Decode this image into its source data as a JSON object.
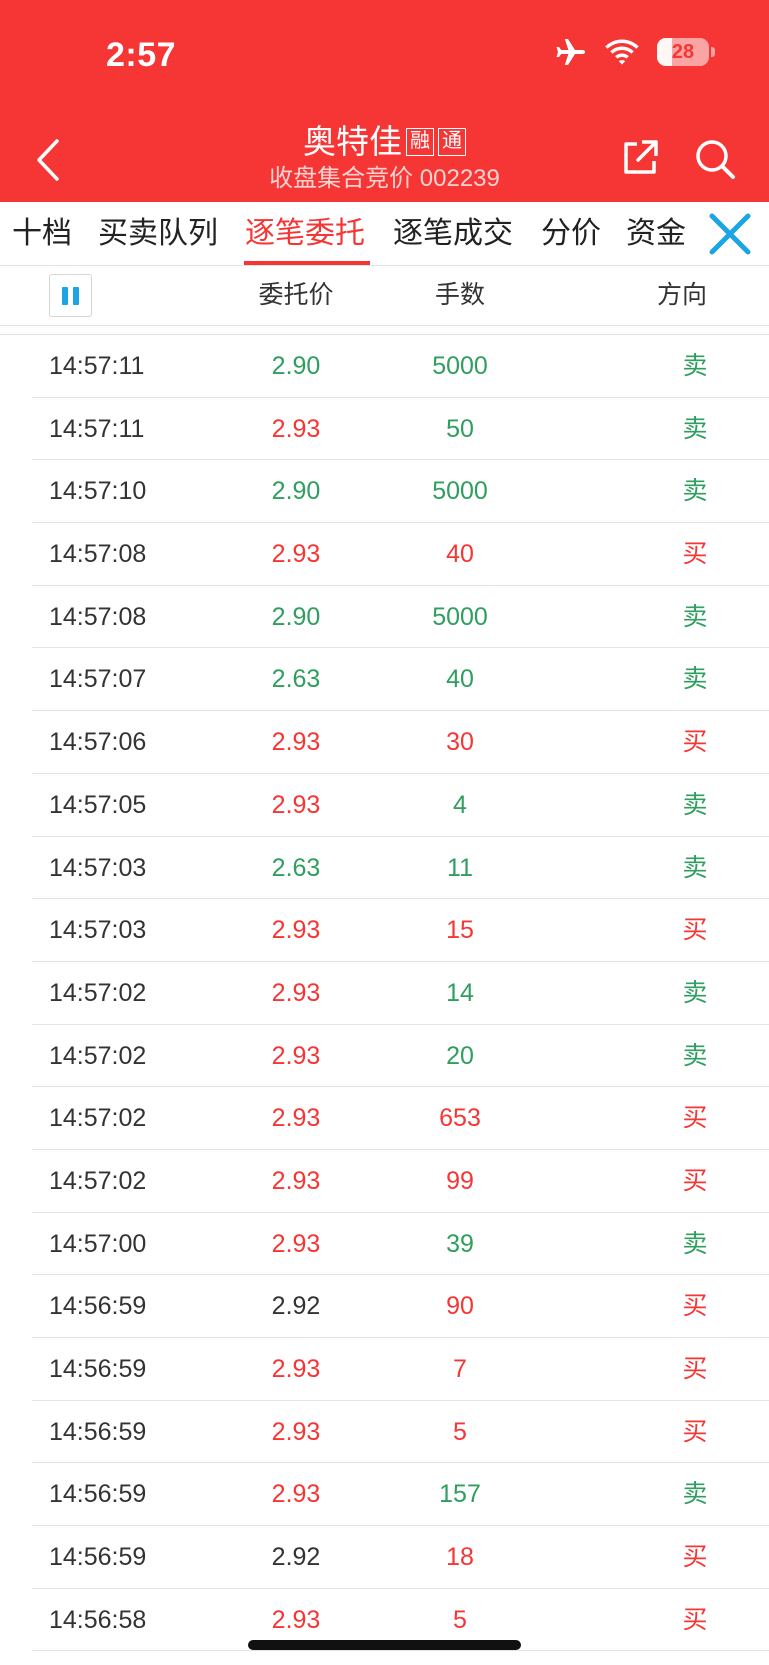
{
  "status_bar": {
    "time": "2:57",
    "battery": "28",
    "battery_level": 0.28
  },
  "header": {
    "title": "奥特佳",
    "tags": [
      "融",
      "通"
    ],
    "subtitle": "收盘集合竞价 002239"
  },
  "tabs": [
    {
      "label": "十档"
    },
    {
      "label": "买卖队列"
    },
    {
      "label": "逐笔委托",
      "active": true
    },
    {
      "label": "逐笔成交"
    },
    {
      "label": "分价"
    },
    {
      "label": "资金"
    }
  ],
  "columns": {
    "price": "委托价",
    "volume": "手数",
    "direction": "方向"
  },
  "colors": {
    "red": "#f63535",
    "green": "#2f9e5f",
    "neutral": "#333333",
    "accent_blue": "#1ba5e6"
  },
  "rows": [
    {
      "time": "14:57:11",
      "price": "2.90",
      "price_color": "green",
      "volume": "5000",
      "volume_color": "green",
      "direction": "卖",
      "direction_color": "green"
    },
    {
      "time": "14:57:11",
      "price": "2.93",
      "price_color": "red",
      "volume": "50",
      "volume_color": "green",
      "direction": "卖",
      "direction_color": "green"
    },
    {
      "time": "14:57:10",
      "price": "2.90",
      "price_color": "green",
      "volume": "5000",
      "volume_color": "green",
      "direction": "卖",
      "direction_color": "green"
    },
    {
      "time": "14:57:08",
      "price": "2.93",
      "price_color": "red",
      "volume": "40",
      "volume_color": "red",
      "direction": "买",
      "direction_color": "red"
    },
    {
      "time": "14:57:08",
      "price": "2.90",
      "price_color": "green",
      "volume": "5000",
      "volume_color": "green",
      "direction": "卖",
      "direction_color": "green"
    },
    {
      "time": "14:57:07",
      "price": "2.63",
      "price_color": "green",
      "volume": "40",
      "volume_color": "green",
      "direction": "卖",
      "direction_color": "green"
    },
    {
      "time": "14:57:06",
      "price": "2.93",
      "price_color": "red",
      "volume": "30",
      "volume_color": "red",
      "direction": "买",
      "direction_color": "red"
    },
    {
      "time": "14:57:05",
      "price": "2.93",
      "price_color": "red",
      "volume": "4",
      "volume_color": "green",
      "direction": "卖",
      "direction_color": "green"
    },
    {
      "time": "14:57:03",
      "price": "2.63",
      "price_color": "green",
      "volume": "11",
      "volume_color": "green",
      "direction": "卖",
      "direction_color": "green"
    },
    {
      "time": "14:57:03",
      "price": "2.93",
      "price_color": "red",
      "volume": "15",
      "volume_color": "red",
      "direction": "买",
      "direction_color": "red"
    },
    {
      "time": "14:57:02",
      "price": "2.93",
      "price_color": "red",
      "volume": "14",
      "volume_color": "green",
      "direction": "卖",
      "direction_color": "green"
    },
    {
      "time": "14:57:02",
      "price": "2.93",
      "price_color": "red",
      "volume": "20",
      "volume_color": "green",
      "direction": "卖",
      "direction_color": "green"
    },
    {
      "time": "14:57:02",
      "price": "2.93",
      "price_color": "red",
      "volume": "653",
      "volume_color": "red",
      "direction": "买",
      "direction_color": "red"
    },
    {
      "time": "14:57:02",
      "price": "2.93",
      "price_color": "red",
      "volume": "99",
      "volume_color": "red",
      "direction": "买",
      "direction_color": "red"
    },
    {
      "time": "14:57:00",
      "price": "2.93",
      "price_color": "red",
      "volume": "39",
      "volume_color": "green",
      "direction": "卖",
      "direction_color": "green"
    },
    {
      "time": "14:56:59",
      "price": "2.92",
      "price_color": "neutral",
      "volume": "90",
      "volume_color": "red",
      "direction": "买",
      "direction_color": "red"
    },
    {
      "time": "14:56:59",
      "price": "2.93",
      "price_color": "red",
      "volume": "7",
      "volume_color": "red",
      "direction": "买",
      "direction_color": "red"
    },
    {
      "time": "14:56:59",
      "price": "2.93",
      "price_color": "red",
      "volume": "5",
      "volume_color": "red",
      "direction": "买",
      "direction_color": "red"
    },
    {
      "time": "14:56:59",
      "price": "2.93",
      "price_color": "red",
      "volume": "157",
      "volume_color": "green",
      "direction": "卖",
      "direction_color": "green"
    },
    {
      "time": "14:56:59",
      "price": "2.92",
      "price_color": "neutral",
      "volume": "18",
      "volume_color": "red",
      "direction": "买",
      "direction_color": "red"
    },
    {
      "time": "14:56:58",
      "price": "2.93",
      "price_color": "red",
      "volume": "5",
      "volume_color": "red",
      "direction": "买",
      "direction_color": "red"
    }
  ]
}
